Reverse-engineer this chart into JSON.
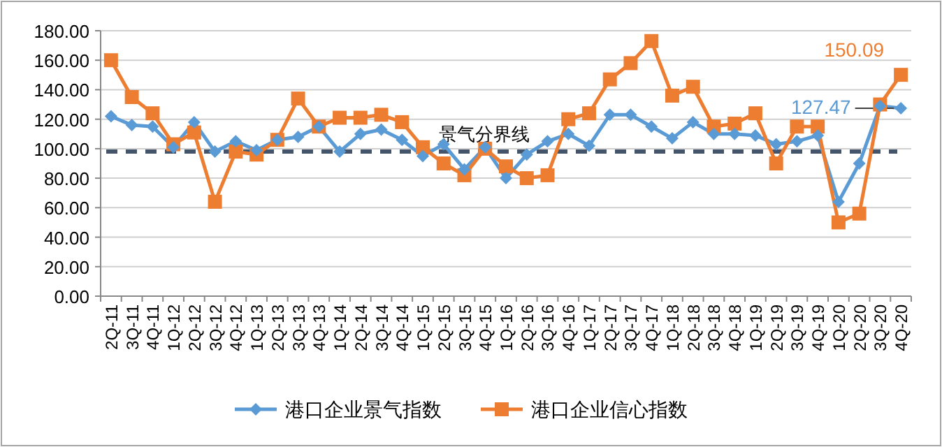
{
  "chart_data": {
    "type": "line",
    "categories": [
      "2Q-11",
      "3Q-11",
      "4Q-11",
      "1Q-12",
      "2Q-12",
      "3Q-12",
      "4Q-12",
      "1Q-13",
      "2Q-13",
      "3Q-13",
      "4Q-13",
      "1Q-14",
      "2Q-14",
      "3Q-14",
      "4Q-14",
      "1Q-15",
      "2Q-15",
      "3Q-15",
      "4Q-15",
      "1Q-16",
      "2Q-16",
      "3Q-16",
      "4Q-16",
      "1Q-17",
      "2Q-17",
      "3Q-17",
      "4Q-17",
      "1Q-18",
      "2Q-18",
      "3Q-18",
      "4Q-18",
      "1Q-19",
      "2Q-19",
      "3Q-19",
      "4Q-19",
      "1Q-20",
      "2Q-20",
      "3Q-20",
      "4Q-20"
    ],
    "series": [
      {
        "name": "港口企业景气指数",
        "color": "#5b9bd5",
        "marker": "diamond",
        "values": [
          122,
          116,
          115,
          101,
          118,
          98,
          105,
          99,
          106,
          108,
          115,
          98,
          110,
          113,
          106,
          95,
          103,
          86,
          101,
          80,
          96,
          105,
          110,
          102,
          123,
          123,
          115,
          107,
          118,
          110,
          110,
          109,
          103,
          105,
          109,
          64,
          90,
          129,
          127.47
        ],
        "value_labels": [
          null,
          null,
          null,
          null,
          null,
          null,
          null,
          null,
          null,
          null,
          null,
          null,
          null,
          null,
          null,
          null,
          null,
          null,
          null,
          null,
          null,
          null,
          null,
          null,
          null,
          null,
          null,
          null,
          null,
          null,
          null,
          null,
          null,
          null,
          null,
          null,
          null,
          null,
          "127.47"
        ]
      },
      {
        "name": "港口企业信心指数",
        "color": "#ed7d31",
        "marker": "square",
        "values": [
          160,
          135,
          124,
          103,
          111,
          64,
          98,
          96,
          106,
          134,
          115,
          121,
          121,
          123,
          118,
          101,
          90,
          82,
          100,
          88,
          80,
          82,
          120,
          124,
          147,
          158,
          173,
          136,
          142,
          115,
          117,
          124,
          90,
          115,
          115,
          50,
          56,
          130,
          150.09
        ],
        "value_labels": [
          null,
          null,
          null,
          null,
          null,
          null,
          null,
          null,
          null,
          null,
          null,
          null,
          null,
          null,
          null,
          null,
          null,
          null,
          null,
          null,
          null,
          null,
          null,
          null,
          null,
          null,
          null,
          null,
          null,
          null,
          null,
          null,
          null,
          null,
          null,
          null,
          null,
          null,
          "150.09"
        ]
      }
    ],
    "ylim": [
      0,
      180
    ],
    "yticks": [
      {
        "value": 0,
        "label": "0.00"
      },
      {
        "value": 20,
        "label": "20.00"
      },
      {
        "value": 40,
        "label": "40.00"
      },
      {
        "value": 60,
        "label": "60.00"
      },
      {
        "value": 80,
        "label": "80.00"
      },
      {
        "value": 100,
        "label": "100.00"
      },
      {
        "value": 120,
        "label": "120.00"
      },
      {
        "value": 140,
        "label": "140.00"
      },
      {
        "value": 160,
        "label": "160.00"
      },
      {
        "value": 180,
        "label": "180.00"
      }
    ],
    "grid": "y",
    "legend": "bottom",
    "line_style": "solid",
    "ref_lines": [
      {
        "axis": "y",
        "value": 98,
        "label": "景气分界线",
        "color": "#44546a",
        "line_style": "dashed"
      }
    ]
  }
}
